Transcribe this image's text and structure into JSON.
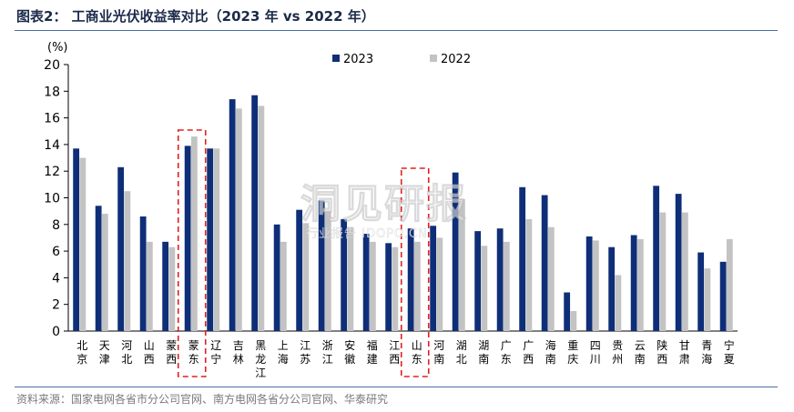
{
  "header": {
    "title": "图表2：  工商业光伏收益率对比（2023 年 vs 2022 年）"
  },
  "footer": {
    "source": "资料来源：国家电网各省市分公司官网、南方电网各省分公司官网、华泰研究"
  },
  "watermark": {
    "main": "洞见研报",
    "sub": "行业报告 IDOPO.CN"
  },
  "colors": {
    "s2023": "#0f2e78",
    "s2022": "#c3c3c3",
    "highlight": "#e02020",
    "axis": "#000000"
  },
  "chart_data": {
    "type": "bar",
    "unit_label": "(%)",
    "ylim": [
      0,
      20
    ],
    "yticks": [
      0,
      2,
      4,
      6,
      8,
      10,
      12,
      14,
      16,
      18,
      20
    ],
    "legend_position": "top-center",
    "categories": [
      [
        "北",
        "京"
      ],
      [
        "天",
        "津"
      ],
      [
        "河",
        "北"
      ],
      [
        "山",
        "西"
      ],
      [
        "蒙",
        "西"
      ],
      [
        "蒙",
        "东"
      ],
      [
        "辽",
        "宁"
      ],
      [
        "吉",
        "林"
      ],
      [
        "黑",
        "龙",
        "江"
      ],
      [
        "上",
        "海"
      ],
      [
        "江",
        "苏"
      ],
      [
        "浙",
        "江"
      ],
      [
        "安",
        "徽"
      ],
      [
        "福",
        "建"
      ],
      [
        "江",
        "西"
      ],
      [
        "山",
        "东"
      ],
      [
        "河",
        "南"
      ],
      [
        "湖",
        "北"
      ],
      [
        "湖",
        "南"
      ],
      [
        "广",
        "东"
      ],
      [
        "广",
        "西"
      ],
      [
        "海",
        "南"
      ],
      [
        "重",
        "庆"
      ],
      [
        "四",
        "川"
      ],
      [
        "贵",
        "州"
      ],
      [
        "云",
        "南"
      ],
      [
        "陕",
        "西"
      ],
      [
        "甘",
        "肃"
      ],
      [
        "青",
        "海"
      ],
      [
        "宁",
        "夏"
      ]
    ],
    "series": [
      {
        "name": "2023",
        "values": [
          13.7,
          9.4,
          12.3,
          8.6,
          6.7,
          13.9,
          13.7,
          17.4,
          17.7,
          8.0,
          9.1,
          9.8,
          8.4,
          7.3,
          6.6,
          7.7,
          7.9,
          11.9,
          7.5,
          7.7,
          10.8,
          10.2,
          2.9,
          7.1,
          6.3,
          7.2,
          10.9,
          10.3,
          5.9,
          5.2
        ]
      },
      {
        "name": "2022",
        "values": [
          13.0,
          8.8,
          10.5,
          6.7,
          6.3,
          14.6,
          13.7,
          16.7,
          16.9,
          6.7,
          8.1,
          9.0,
          7.8,
          6.7,
          6.3,
          6.7,
          7.0,
          9.9,
          6.4,
          6.7,
          8.4,
          7.8,
          1.5,
          6.8,
          4.2,
          6.9,
          8.9,
          8.9,
          4.7,
          6.9
        ]
      }
    ],
    "highlighted_categories": [
      5,
      15
    ]
  }
}
